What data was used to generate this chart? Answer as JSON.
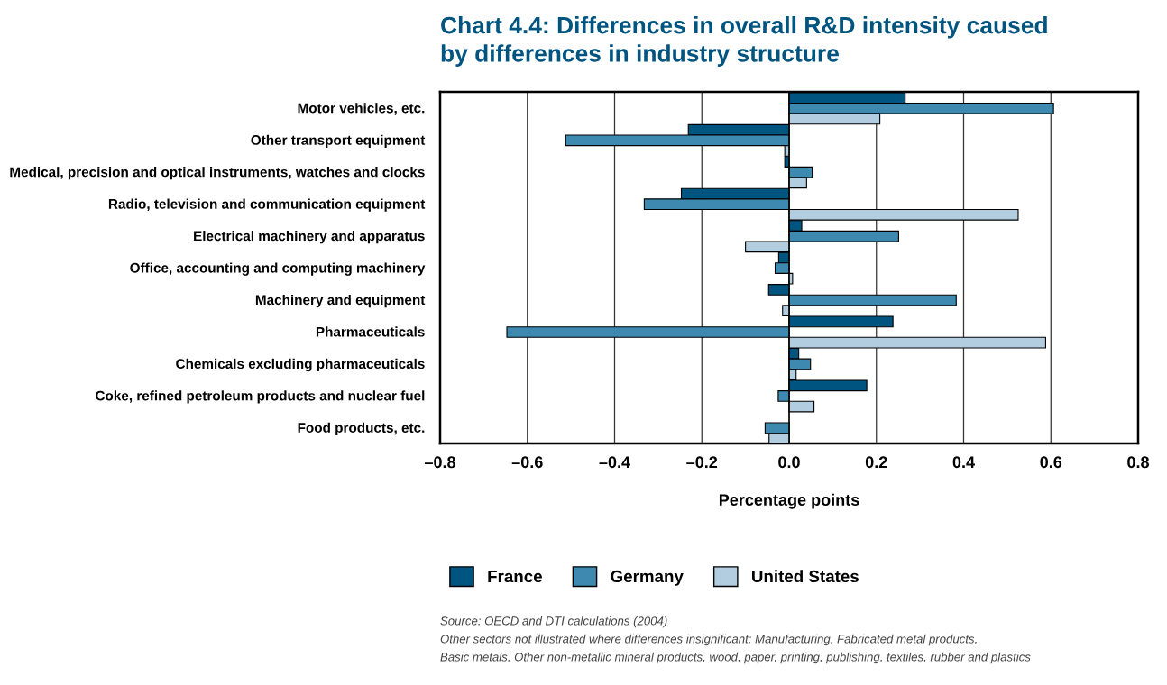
{
  "chart_data": {
    "type": "bar",
    "orientation": "horizontal",
    "title": "Chart 4.4: Differences in overall R&D intensity caused\nby differences in industry structure",
    "xlabel": "Percentage points",
    "categories": [
      "Motor vehicles, etc.",
      "Other transport equipment",
      "Medical, precision and optical instruments, watches and clocks",
      "Radio, television and communication equipment",
      "Electrical machinery and apparatus",
      "Office, accounting and computing machinery",
      "Machinery and equipment",
      "Pharmaceuticals",
      "Chemicals excluding pharmaceuticals",
      "Coke, refined petroleum products and nuclear fuel",
      "Food products, etc."
    ],
    "series": [
      {
        "name": "France",
        "color": "#005580",
        "values": [
          0.266,
          -0.231,
          -0.01,
          -0.247,
          0.029,
          -0.024,
          -0.047,
          0.238,
          0.022,
          0.178,
          null
        ]
      },
      {
        "name": "Germany",
        "color": "#3d89b0",
        "values": [
          0.606,
          -0.512,
          0.053,
          -0.332,
          0.251,
          -0.032,
          0.383,
          -0.647,
          0.049,
          -0.025,
          -0.055
        ]
      },
      {
        "name": "United States",
        "color": "#b3cde0",
        "values": [
          0.208,
          -0.01,
          0.04,
          0.525,
          -0.1,
          0.008,
          -0.015,
          0.588,
          0.016,
          0.057,
          -0.046
        ]
      }
    ],
    "xlim": [
      -0.8,
      0.8
    ],
    "xticks": [
      {
        "value": -0.8,
        "label": "–0.8"
      },
      {
        "value": -0.6,
        "label": "–0.6"
      },
      {
        "value": -0.4,
        "label": "–0.4"
      },
      {
        "value": -0.2,
        "label": "–0.2"
      },
      {
        "value": 0,
        "label": "0.0"
      },
      {
        "value": 0.2,
        "label": "0.2"
      },
      {
        "value": 0.4,
        "label": "0.4"
      },
      {
        "value": 0.6,
        "label": "0.6"
      },
      {
        "value": 0.8,
        "label": "0.8"
      }
    ],
    "grid": "x",
    "legend": "bottom",
    "annotations": [
      "Source: OECD and DTI calculations (2004)",
      "Other sectors not illustrated where differences insignificant: Manufacturing, Fabricated metal products,",
      "Basic metals, Other non-metallic mineral products, wood, paper, printing, publishing, textiles, rubber and plastics"
    ]
  }
}
